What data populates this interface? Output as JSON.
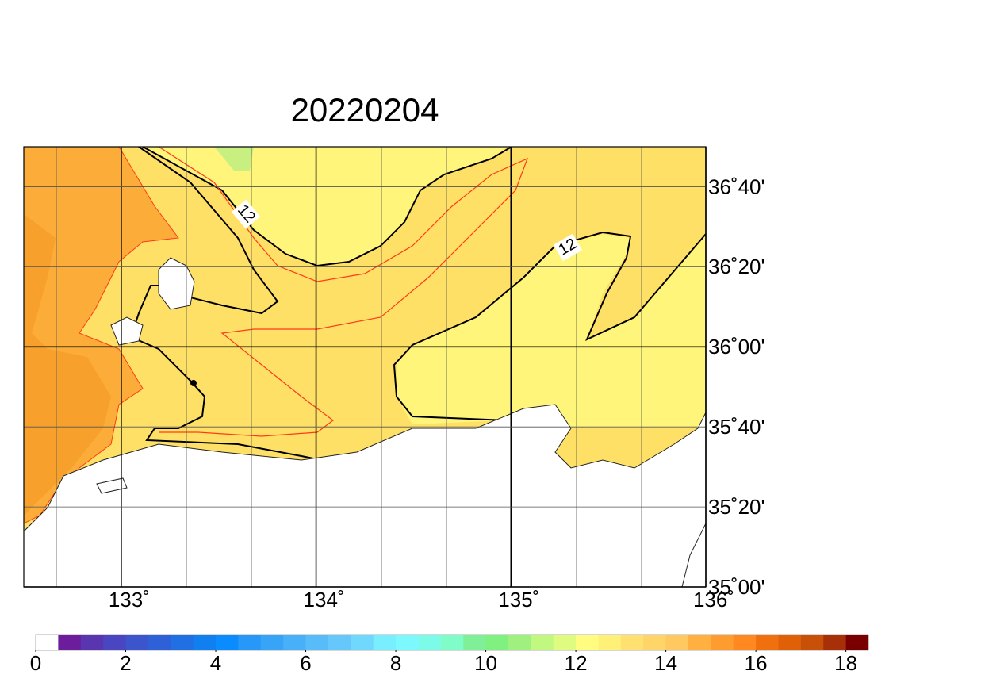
{
  "map": {
    "title": "20220204",
    "xlim": [
      132.5,
      136
    ],
    "ylim": [
      35,
      36.8333
    ],
    "xticks": [
      {
        "value": 133,
        "label": "133˚"
      },
      {
        "value": 134,
        "label": "134˚"
      },
      {
        "value": 135,
        "label": "135˚"
      },
      {
        "value": 136,
        "label": "136˚"
      }
    ],
    "yticks": [
      {
        "value": 35,
        "label": "35˚00'"
      },
      {
        "value": 35.3333,
        "label": "35˚20'"
      },
      {
        "value": 35.6667,
        "label": "35˚40'"
      },
      {
        "value": 36,
        "label": "36˚00'"
      },
      {
        "value": 36.3333,
        "label": "36˚20'"
      },
      {
        "value": 36.6667,
        "label": "36˚40'"
      }
    ],
    "contour_labels": [
      "12",
      "12"
    ],
    "colorbar": {
      "lim": [
        0,
        18.5
      ],
      "ticks": [
        0,
        2,
        4,
        6,
        8,
        10,
        12,
        14,
        16,
        18
      ],
      "colors": [
        "#ffffff",
        "#6c1d9c",
        "#5a35b0",
        "#4a45c0",
        "#3c55cc",
        "#2e60d8",
        "#2070e4",
        "#1080f0",
        "#0a8cff",
        "#2898f8",
        "#38a4f8",
        "#48b0f8",
        "#58bcf8",
        "#66c8fa",
        "#70d8fc",
        "#78eeff",
        "#7cf8ff",
        "#7cfce8",
        "#80fcc8",
        "#80f098",
        "#80f080",
        "#a0f080",
        "#c0f880",
        "#e0fc80",
        "#fffc80",
        "#fff078",
        "#ffe070",
        "#ffd468",
        "#ffc860",
        "#ffb040",
        "#ff9c30",
        "#ff8820",
        "#f07010",
        "#e06008",
        "#c85008",
        "#a83008",
        "#7a0000"
      ]
    }
  }
}
